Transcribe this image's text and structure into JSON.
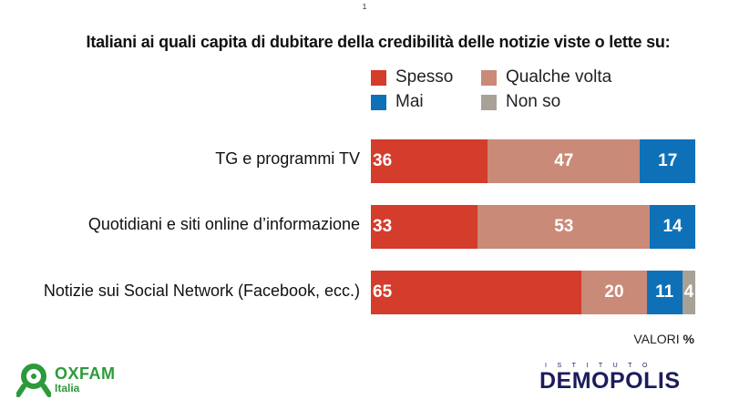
{
  "page_number": "1",
  "title": "Italiani ai quali capita di dubitare della credibilità delle notizie viste o lette su:",
  "footer_note": {
    "label": "VALORI",
    "unit": "%"
  },
  "logos": {
    "left": {
      "name": "OXFAM",
      "sub": "Italia",
      "icon": "oxfam-logo-icon"
    },
    "right": {
      "top": "ISTITUTO",
      "name": "DEMOPOLIS"
    }
  },
  "colors": {
    "spesso": "#d43c2c",
    "qualche_volta": "#c98a78",
    "mai": "#0e71b8",
    "non_so": "#a8a196"
  },
  "chart_data": {
    "type": "bar",
    "orientation": "horizontal",
    "stacked": true,
    "categories": [
      "TG e programmi TV",
      "Quotidiani e siti online d’informazione",
      "Notizie sui Social Network (Facebook, ecc.)"
    ],
    "series": [
      {
        "name": "Spesso",
        "values": [
          36,
          33,
          65
        ]
      },
      {
        "name": "Qualche volta",
        "values": [
          47,
          53,
          20
        ]
      },
      {
        "name": "Mai",
        "values": [
          17,
          14,
          11
        ]
      },
      {
        "name": "Non so",
        "values": [
          null,
          null,
          4
        ]
      }
    ],
    "value_labels": [
      [
        "36",
        "47",
        "17",
        ""
      ],
      [
        "33",
        "53",
        "14",
        ""
      ],
      [
        "65",
        "20",
        "11",
        "4"
      ]
    ],
    "title": "Italiani ai quali capita di dubitare della credibilità delle notizie viste o lette su:",
    "xlabel": "",
    "ylabel": "",
    "xlim": [
      0,
      100
    ],
    "legend": "top",
    "grid": false
  }
}
